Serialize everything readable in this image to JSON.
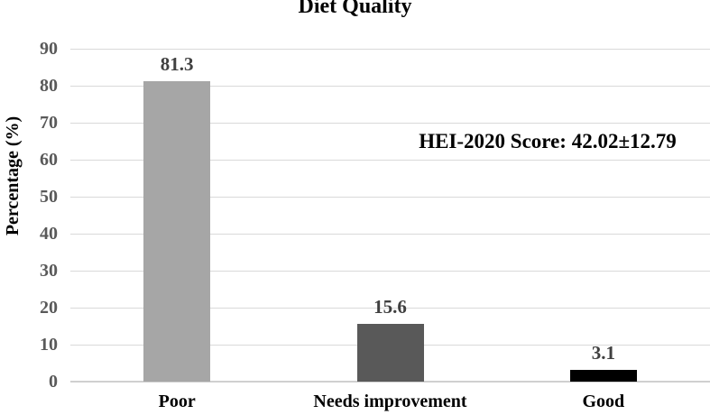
{
  "chart_data": {
    "type": "bar",
    "title": "Diet Quality",
    "ylabel": "Percentage (%)",
    "xlabel": "",
    "categories": [
      "Poor",
      "Needs improvement",
      "Good"
    ],
    "values": [
      81.3,
      15.6,
      3.1
    ],
    "data_labels": [
      "81.3",
      "15.6",
      "3.1"
    ],
    "bar_colors": [
      "#a6a6a6",
      "#595959",
      "#000000"
    ],
    "ylim": [
      0,
      90
    ],
    "ytick_step": 10,
    "ytick_labels": [
      "0",
      "10",
      "20",
      "30",
      "40",
      "50",
      "60",
      "70",
      "80",
      "90"
    ],
    "grid": true,
    "legend": false,
    "annotation": "HEI-2020 Score: 42.02±12.79",
    "colors": {
      "gridline": "#d9d9d9",
      "axis_line": "#d0d0d0",
      "ytick_text": "#595959",
      "data_label_text": "#404040",
      "title_text": "#000000",
      "background": "#ffffff"
    }
  }
}
